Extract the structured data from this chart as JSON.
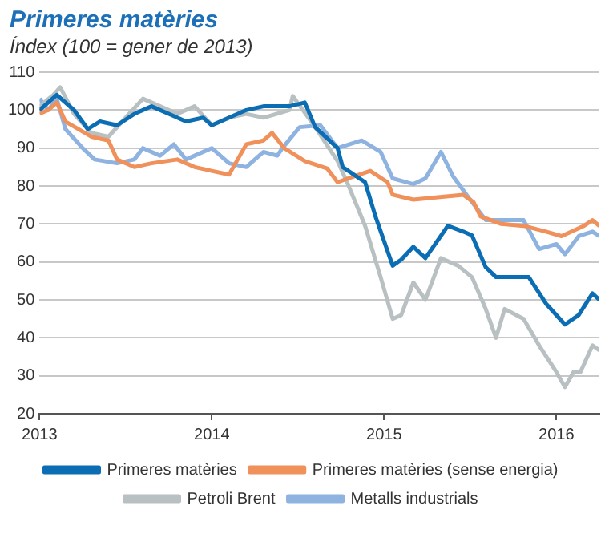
{
  "chart_data": {
    "type": "line",
    "title": "Primeres matèries",
    "subtitle": "Índex (100 = gener de 2013)",
    "xlim": [
      2013,
      2016.25
    ],
    "xticks": [
      2013,
      2014,
      2015,
      2016
    ],
    "ylim": [
      20,
      110
    ],
    "yticks": [
      20,
      30,
      40,
      50,
      60,
      70,
      80,
      90,
      100,
      110
    ],
    "grid": "y",
    "legend": "bottom",
    "marker": "none",
    "line_style": "solid",
    "series": [
      {
        "name": "Primeres matèries",
        "color": "#0b6db3",
        "x": [
          2013,
          2013.05,
          2013.1,
          2013.2,
          2013.28,
          2013.35,
          2013.45,
          2013.55,
          2013.65,
          2013.75,
          2013.85,
          2013.95,
          2014,
          2014.1,
          2014.2,
          2014.3,
          2014.45,
          2014.54,
          2014.6,
          2014.73,
          2014.76,
          2014.89,
          2014.95,
          2015.05,
          2015.1,
          2015.17,
          2015.24,
          2015.37,
          2015.46,
          2015.51,
          2015.59,
          2015.65,
          2015.75,
          2015.84,
          2015.94,
          2016.05,
          2016.13,
          2016.21,
          2016.25
        ],
        "values": [
          100,
          102,
          104,
          100,
          95,
          97,
          96,
          99,
          101,
          99,
          97,
          98,
          96,
          98,
          100,
          101,
          101,
          102,
          95.5,
          90,
          85,
          81,
          72,
          59,
          60.6,
          64,
          61,
          69.5,
          68,
          67,
          58.6,
          56,
          56,
          56,
          49,
          43.5,
          46,
          51.7,
          50
        ]
      },
      {
        "name": "Primeres matèries (sense energia)",
        "color": "#f0905a",
        "x": [
          2013,
          2013.05,
          2013.1,
          2013.15,
          2013.3,
          2013.4,
          2013.45,
          2013.55,
          2013.65,
          2013.8,
          2013.9,
          2014,
          2014.1,
          2014.15,
          2014.2,
          2014.3,
          2014.35,
          2014.42,
          2014.54,
          2014.67,
          2014.73,
          2014.83,
          2014.92,
          2015.02,
          2015.05,
          2015.17,
          2015.3,
          2015.46,
          2015.52,
          2015.56,
          2015.68,
          2015.81,
          2015.94,
          2016.03,
          2016.16,
          2016.21,
          2016.25
        ],
        "values": [
          99,
          100,
          102,
          97,
          93,
          92,
          87,
          85,
          86,
          87,
          85,
          84,
          83,
          87,
          91,
          92,
          94,
          90,
          86.6,
          84.6,
          81,
          82.6,
          84,
          81,
          77.7,
          76.4,
          77,
          77.7,
          75.7,
          72,
          70,
          69.5,
          68,
          66.8,
          69.5,
          71,
          69.5
        ]
      },
      {
        "name": "Petroli Brent",
        "color": "#b9c0c2",
        "x": [
          2013,
          2013.08,
          2013.12,
          2013.2,
          2013.3,
          2013.4,
          2013.5,
          2013.6,
          2013.7,
          2013.8,
          2013.9,
          2014,
          2014.1,
          2014.2,
          2014.3,
          2014.45,
          2014.47,
          2014.6,
          2014.73,
          2014.79,
          2014.89,
          2014.98,
          2015.05,
          2015.1,
          2015.17,
          2015.24,
          2015.33,
          2015.43,
          2015.51,
          2015.59,
          2015.65,
          2015.7,
          2015.81,
          2015.9,
          2016,
          2016.05,
          2016.1,
          2016.14,
          2016.21,
          2016.25
        ],
        "values": [
          101,
          104,
          106,
          99,
          94,
          93,
          98,
          103,
          101,
          99,
          101,
          96,
          98,
          99,
          98,
          100,
          103.7,
          95.5,
          86.6,
          80.5,
          69.5,
          56,
          45,
          46,
          54.6,
          50,
          61,
          59,
          56,
          47.6,
          40,
          47.6,
          45,
          38,
          31,
          27,
          31,
          31,
          38,
          36.7
        ]
      },
      {
        "name": "Metalls industrials",
        "color": "#8fb3e0",
        "x": [
          2013,
          2013.05,
          2013.1,
          2013.15,
          2013.25,
          2013.32,
          2013.45,
          2013.55,
          2013.6,
          2013.7,
          2013.78,
          2013.85,
          2013.95,
          2014,
          2014.1,
          2014.2,
          2014.3,
          2014.38,
          2014.41,
          2014.51,
          2014.63,
          2014.73,
          2014.87,
          2014.98,
          2015.05,
          2015.17,
          2015.24,
          2015.33,
          2015.4,
          2015.49,
          2015.59,
          2015.68,
          2015.81,
          2015.9,
          2016,
          2016.05,
          2016.13,
          2016.21,
          2016.25
        ],
        "values": [
          103,
          100,
          103,
          95,
          90,
          87,
          86,
          87,
          90,
          88,
          91,
          87,
          89,
          90,
          86,
          85,
          89,
          88,
          90,
          95.5,
          96,
          90,
          92,
          89,
          82,
          80.5,
          82,
          89,
          82.6,
          77,
          71,
          71,
          71,
          63.4,
          64.7,
          62,
          66.8,
          68,
          66.8
        ]
      }
    ]
  }
}
